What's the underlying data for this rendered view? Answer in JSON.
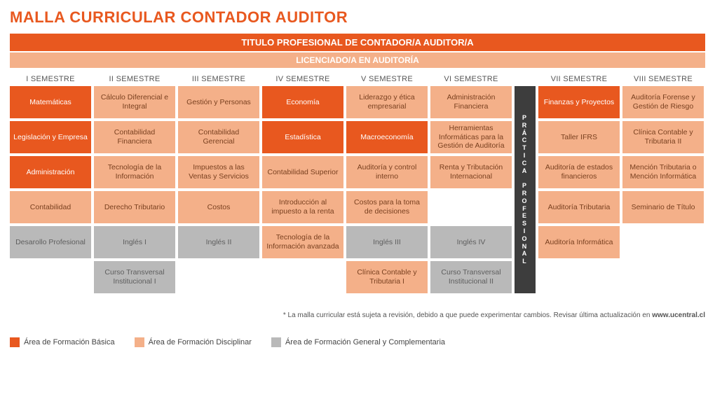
{
  "title": "MALLA CURRICULAR CONTADOR AUDITOR",
  "banner1": "TITULO PROFESIONAL DE CONTADOR/A AUDITOR/A",
  "banner2": "LICENCIADO/A EN AUDITORÍA",
  "colors": {
    "basica": "#e8581f",
    "disciplinar": "#f4b089",
    "general": "#b9b9b9",
    "practica": "#3d3d3d"
  },
  "semesters": [
    "I SEMESTRE",
    "II SEMESTRE",
    "III SEMESTRE",
    "IV SEMESTRE",
    "V SEMESTRE",
    "VI SEMESTRE",
    "VII SEMESTRE",
    "VIII SEMESTRE"
  ],
  "practica": "PRÁCTICA PROFESIONAL",
  "cells": [
    {
      "col": 1,
      "row": 1,
      "cat": "basica",
      "t": "Matemáticas"
    },
    {
      "col": 2,
      "row": 1,
      "cat": "disc",
      "t": "Cálculo Diferencial e Integral"
    },
    {
      "col": 3,
      "row": 1,
      "cat": "disc",
      "t": "Gestión y Personas"
    },
    {
      "col": 4,
      "row": 1,
      "cat": "basica",
      "t": "Economía"
    },
    {
      "col": 5,
      "row": 1,
      "cat": "disc",
      "t": "Liderazgo y ética empresarial"
    },
    {
      "col": 6,
      "row": 1,
      "cat": "disc",
      "t": "Administración Financiera"
    },
    {
      "col": 8,
      "row": 1,
      "cat": "basica",
      "t": "Finanzas y Proyectos"
    },
    {
      "col": 9,
      "row": 1,
      "cat": "disc",
      "t": "Auditoría Forense y Gestión de Riesgo"
    },
    {
      "col": 1,
      "row": 2,
      "cat": "basica",
      "t": "Legislación y Empresa"
    },
    {
      "col": 2,
      "row": 2,
      "cat": "disc",
      "t": "Contabilidad Financiera"
    },
    {
      "col": 3,
      "row": 2,
      "cat": "disc",
      "t": "Contabilidad Gerencial"
    },
    {
      "col": 4,
      "row": 2,
      "cat": "basica",
      "t": "Estadística"
    },
    {
      "col": 5,
      "row": 2,
      "cat": "basica",
      "t": "Macroeconomía"
    },
    {
      "col": 6,
      "row": 2,
      "cat": "disc",
      "t": "Herramientas Informáticas para la Gestión de Auditoría"
    },
    {
      "col": 8,
      "row": 2,
      "cat": "disc",
      "t": "Taller IFRS"
    },
    {
      "col": 9,
      "row": 2,
      "cat": "disc",
      "t": "Clínica Contable y Tributaria II"
    },
    {
      "col": 1,
      "row": 3,
      "cat": "basica",
      "t": "Administración"
    },
    {
      "col": 2,
      "row": 3,
      "cat": "disc",
      "t": "Tecnología de la Información"
    },
    {
      "col": 3,
      "row": 3,
      "cat": "disc",
      "t": "Impuestos a las Ventas y Servicios"
    },
    {
      "col": 4,
      "row": 3,
      "cat": "disc",
      "t": "Contabilidad Superior"
    },
    {
      "col": 5,
      "row": 3,
      "cat": "disc",
      "t": "Auditoría y control interno"
    },
    {
      "col": 6,
      "row": 3,
      "cat": "disc",
      "t": "Renta y Tributación Internacional"
    },
    {
      "col": 8,
      "row": 3,
      "cat": "disc",
      "t": "Auditoría de estados financieros"
    },
    {
      "col": 9,
      "row": 3,
      "cat": "disc",
      "t": "Mención Tributaria o Mención Informática"
    },
    {
      "col": 1,
      "row": 4,
      "cat": "disc",
      "t": "Contabilidad"
    },
    {
      "col": 2,
      "row": 4,
      "cat": "disc",
      "t": "Derecho Tributario"
    },
    {
      "col": 3,
      "row": 4,
      "cat": "disc",
      "t": "Costos"
    },
    {
      "col": 4,
      "row": 4,
      "cat": "disc",
      "t": "Introducción al impuesto a la renta"
    },
    {
      "col": 5,
      "row": 4,
      "cat": "disc",
      "t": "Costos para la toma de decisiones"
    },
    {
      "col": 6,
      "row": 4,
      "cat": "empty",
      "t": ""
    },
    {
      "col": 8,
      "row": 4,
      "cat": "disc",
      "t": "Auditoría Tributaria"
    },
    {
      "col": 9,
      "row": 4,
      "cat": "disc",
      "t": "Seminario de Título"
    },
    {
      "col": 1,
      "row": 5,
      "cat": "gen",
      "t": "Desarollo Profesional"
    },
    {
      "col": 2,
      "row": 5,
      "cat": "gen",
      "t": "Inglés I"
    },
    {
      "col": 3,
      "row": 5,
      "cat": "gen",
      "t": "Inglés II"
    },
    {
      "col": 4,
      "row": 5,
      "cat": "disc",
      "t": "Tecnología de la Información avanzada"
    },
    {
      "col": 5,
      "row": 5,
      "cat": "gen",
      "t": "Inglés III"
    },
    {
      "col": 6,
      "row": 5,
      "cat": "gen",
      "t": "Inglés IV"
    },
    {
      "col": 8,
      "row": 5,
      "cat": "disc",
      "t": "Auditoría Informática"
    },
    {
      "col": 2,
      "row": 6,
      "cat": "gen",
      "t": "Curso Transversal Institucional I"
    },
    {
      "col": 5,
      "row": 6,
      "cat": "disc",
      "t": "Clínica Contable y Tributaria I"
    },
    {
      "col": 6,
      "row": 6,
      "cat": "gen",
      "t": "Curso Transversal Institucional II"
    }
  ],
  "footnote_pre": "* La malla curricular está sujeta a revisión, debido a que puede experimentar cambios. Revisar última actualización en ",
  "footnote_b": "www.ucentral.cl",
  "legend": [
    {
      "c": "basica",
      "l": "Área de Formación Básica"
    },
    {
      "c": "disciplinar",
      "l": "Área de Formación Disciplinar"
    },
    {
      "c": "general",
      "l": "Área de Formación General y Complementaria"
    }
  ]
}
